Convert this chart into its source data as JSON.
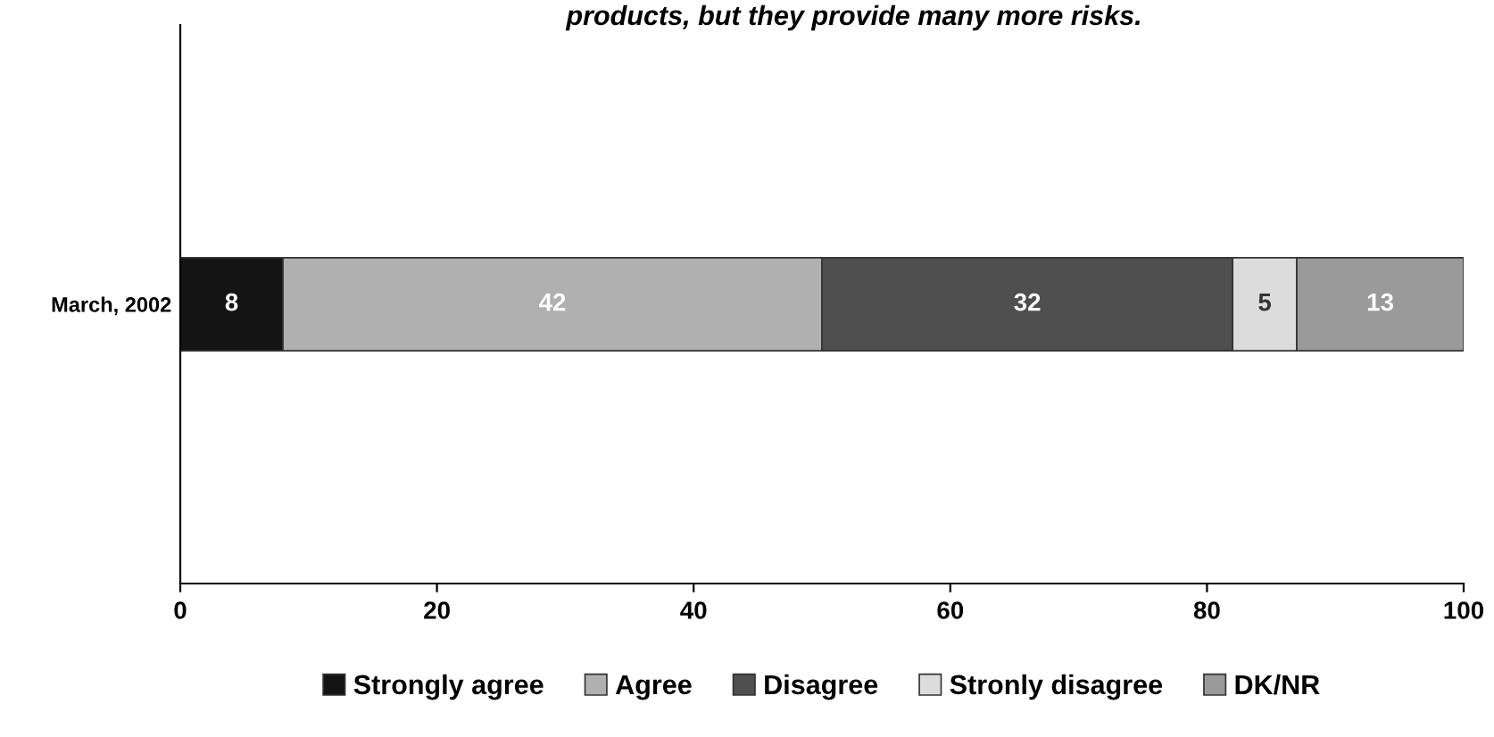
{
  "chart_data": {
    "type": "bar",
    "orientation": "horizontal",
    "stacked": true,
    "title": "products, but they provide many more risks.",
    "categories": [
      "March, 2002"
    ],
    "series": [
      {
        "name": "Strongly agree",
        "color": "#141414",
        "values": [
          8
        ]
      },
      {
        "name": "Agree",
        "color": "#b0b0b0",
        "values": [
          42
        ]
      },
      {
        "name": "Disagree",
        "color": "#4f4f4f",
        "values": [
          32
        ]
      },
      {
        "name": "Stronly disagree",
        "color": "#dcdcdc",
        "values": [
          5
        ]
      },
      {
        "name": "DK/NR",
        "color": "#9a9a9a",
        "values": [
          13
        ]
      }
    ],
    "xlim": [
      0,
      100
    ],
    "xticks": [
      0,
      20,
      40,
      60,
      80,
      100
    ],
    "data_labels": true,
    "legend": "bottom",
    "grid": false
  }
}
